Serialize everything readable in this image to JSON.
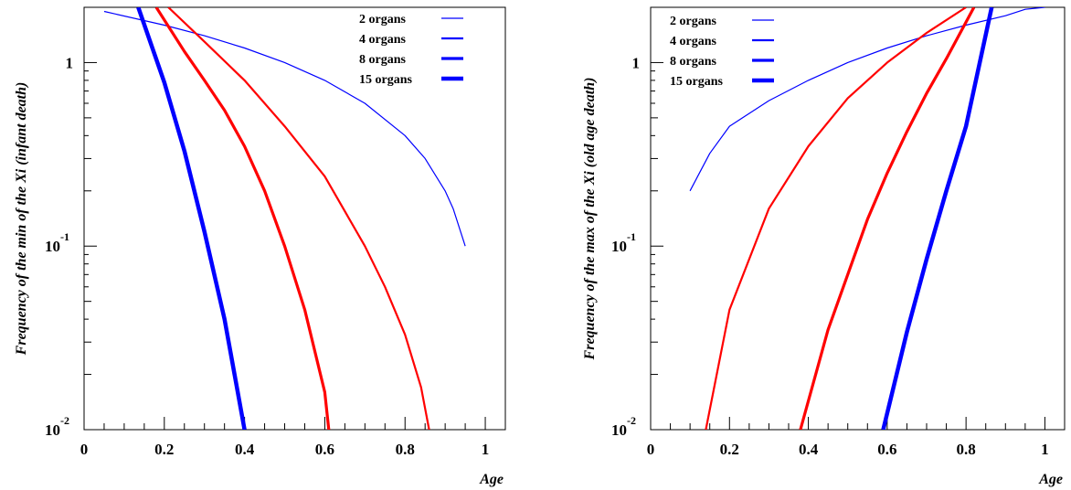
{
  "chart_data": [
    {
      "type": "line",
      "xlabel": "Age",
      "ylabel": "Frequency of the min of the Xi (infant death)",
      "xlim": [
        0,
        1.05
      ],
      "ylim": [
        0.01,
        2
      ],
      "yscale": "log",
      "x_ticks": [
        "0",
        "0.2",
        "0.4",
        "0.6",
        "0.8",
        "1"
      ],
      "y_ticks": [
        {
          "base": "1",
          "exp": ""
        },
        {
          "base": "10",
          "exp": "-1"
        },
        {
          "base": "10",
          "exp": "-2"
        }
      ],
      "legend_position": "top-right",
      "series": [
        {
          "name": "2 organs",
          "color": "#0000ff",
          "x": [
            0.05,
            0.2,
            0.3,
            0.4,
            0.5,
            0.6,
            0.7,
            0.8,
            0.85,
            0.9,
            0.92,
            0.95
          ],
          "y": [
            1.9,
            1.6,
            1.4,
            1.2,
            1.0,
            0.8,
            0.6,
            0.4,
            0.3,
            0.2,
            0.16,
            0.1
          ]
        },
        {
          "name": "4 organs",
          "color": "#ff0000",
          "x": [
            0.21,
            0.3,
            0.4,
            0.5,
            0.6,
            0.7,
            0.75,
            0.8,
            0.84,
            0.86
          ],
          "y": [
            2.0,
            1.3,
            0.8,
            0.45,
            0.24,
            0.1,
            0.06,
            0.033,
            0.017,
            0.01
          ]
        },
        {
          "name": "8 organs",
          "color": "#ff0000",
          "x": [
            0.18,
            0.25,
            0.3,
            0.35,
            0.4,
            0.45,
            0.5,
            0.55,
            0.6,
            0.61
          ],
          "y": [
            2.0,
            1.15,
            0.8,
            0.55,
            0.35,
            0.2,
            0.1,
            0.045,
            0.016,
            0.01
          ]
        },
        {
          "name": "15 organs",
          "color": "#0000ff",
          "x": [
            0.135,
            0.2,
            0.25,
            0.3,
            0.35,
            0.4
          ],
          "y": [
            2.0,
            0.78,
            0.33,
            0.12,
            0.04,
            0.01
          ]
        }
      ]
    },
    {
      "type": "line",
      "xlabel": "Age",
      "ylabel": "Frequency of the max of the Xi (old age death)",
      "xlim": [
        0,
        1.05
      ],
      "ylim": [
        0.01,
        2
      ],
      "yscale": "log",
      "x_ticks": [
        "0",
        "0.2",
        "0.4",
        "0.6",
        "0.8",
        "1"
      ],
      "y_ticks": [
        {
          "base": "1",
          "exp": ""
        },
        {
          "base": "10",
          "exp": "-1"
        },
        {
          "base": "10",
          "exp": "-2"
        }
      ],
      "legend_position": "top-left",
      "series": [
        {
          "name": "2 organs",
          "color": "#0000ff",
          "x": [
            0.1,
            0.15,
            0.2,
            0.3,
            0.4,
            0.5,
            0.6,
            0.7,
            0.8,
            0.9,
            0.95,
            1.0
          ],
          "y": [
            0.2,
            0.32,
            0.45,
            0.62,
            0.8,
            1.0,
            1.2,
            1.4,
            1.6,
            1.8,
            1.95,
            2.0
          ]
        },
        {
          "name": "4 organs",
          "color": "#ff0000",
          "x": [
            0.14,
            0.2,
            0.3,
            0.4,
            0.5,
            0.6,
            0.7,
            0.8
          ],
          "y": [
            0.01,
            0.045,
            0.16,
            0.35,
            0.64,
            1.0,
            1.45,
            2.0
          ]
        },
        {
          "name": "8 organs",
          "color": "#ff0000",
          "x": [
            0.38,
            0.45,
            0.5,
            0.55,
            0.6,
            0.65,
            0.7,
            0.75,
            0.82
          ],
          "y": [
            0.01,
            0.035,
            0.07,
            0.14,
            0.25,
            0.42,
            0.68,
            1.05,
            2.0
          ]
        },
        {
          "name": "15 organs",
          "color": "#0000ff",
          "x": [
            0.59,
            0.65,
            0.7,
            0.75,
            0.8,
            0.865
          ],
          "y": [
            0.01,
            0.034,
            0.085,
            0.2,
            0.45,
            2.0
          ]
        }
      ]
    }
  ]
}
